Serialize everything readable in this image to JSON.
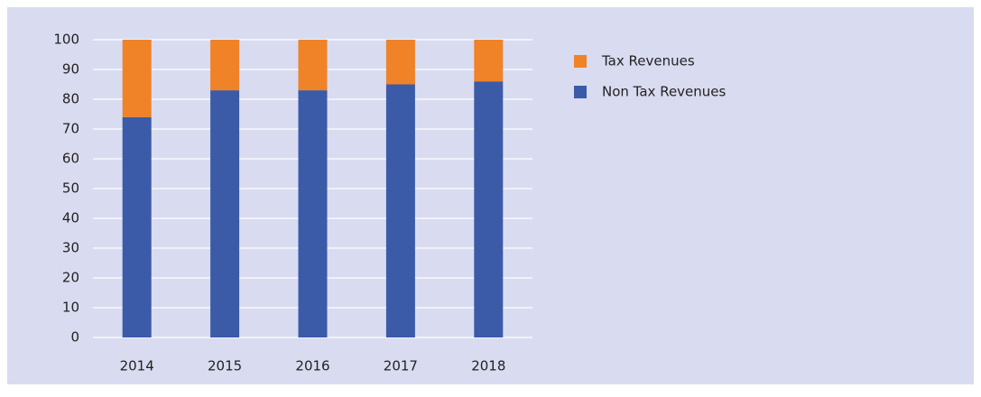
{
  "chart_data": {
    "type": "stacked_bar",
    "categories": [
      "2014",
      "2015",
      "2016",
      "2017",
      "2018"
    ],
    "series": [
      {
        "name": "Non Tax Revenues",
        "color": "#3b5ba8",
        "values": [
          74,
          83,
          83,
          85,
          86
        ]
      },
      {
        "name": "Tax Revenues",
        "color": "#f08227",
        "values": [
          26,
          17,
          17,
          15,
          14
        ]
      }
    ],
    "ylim": [
      0,
      100
    ],
    "yticks": [
      0,
      10,
      20,
      30,
      40,
      50,
      60,
      70,
      80,
      90,
      100
    ],
    "grid": true,
    "legend": "right"
  }
}
